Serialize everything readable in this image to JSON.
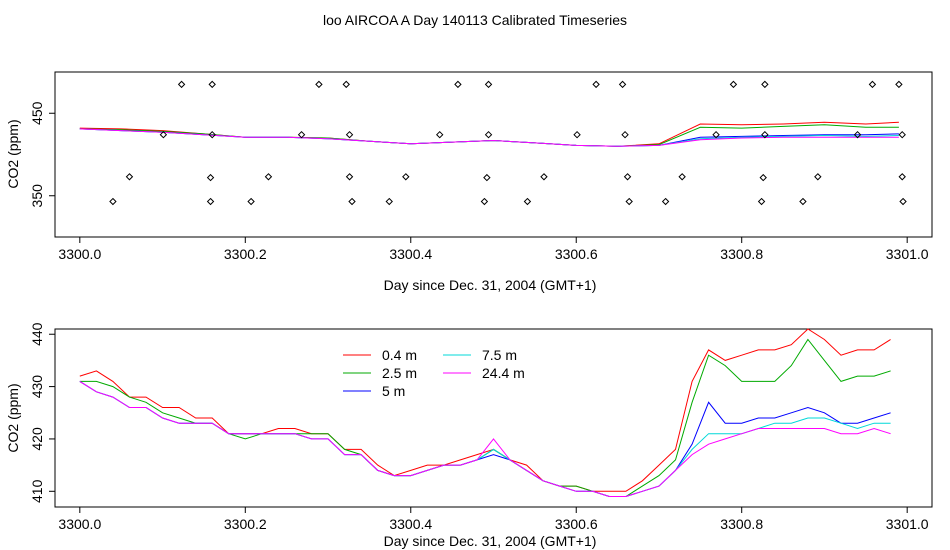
{
  "page_title": "loo AIRCOA A  Day 140113  Calibrated Timeseries",
  "chart_data": [
    {
      "type": "scatter",
      "panel": "top",
      "xlabel": "Day since Dec. 31, 2004 (GMT+1)",
      "ylabel": "CO2 (ppm)",
      "xlim": [
        3299.97,
        3301.03
      ],
      "ylim": [
        300,
        500
      ],
      "x_ticks": [
        "3300.0",
        "3300.2",
        "3300.4",
        "3300.6",
        "3300.8",
        "3301.0"
      ],
      "x_tick_values": [
        3300.0,
        3300.2,
        3300.4,
        3300.6,
        3300.8,
        3301.0
      ],
      "y_ticks": [
        "350",
        "450"
      ],
      "y_tick_values": [
        350,
        450
      ],
      "grid": false,
      "calibration_points": [
        {
          "x": 3300.123,
          "y": 485
        },
        {
          "x": 3300.16,
          "y": 485
        },
        {
          "x": 3300.289,
          "y": 485
        },
        {
          "x": 3300.322,
          "y": 485
        },
        {
          "x": 3300.457,
          "y": 485
        },
        {
          "x": 3300.494,
          "y": 485
        },
        {
          "x": 3300.624,
          "y": 485
        },
        {
          "x": 3300.656,
          "y": 485
        },
        {
          "x": 3300.79,
          "y": 485
        },
        {
          "x": 3300.828,
          "y": 485
        },
        {
          "x": 3300.958,
          "y": 485
        },
        {
          "x": 3300.99,
          "y": 485
        },
        {
          "x": 3300.101,
          "y": 424
        },
        {
          "x": 3300.16,
          "y": 424
        },
        {
          "x": 3300.268,
          "y": 424
        },
        {
          "x": 3300.326,
          "y": 424
        },
        {
          "x": 3300.435,
          "y": 424
        },
        {
          "x": 3300.494,
          "y": 424
        },
        {
          "x": 3300.601,
          "y": 424
        },
        {
          "x": 3300.659,
          "y": 424
        },
        {
          "x": 3300.769,
          "y": 424
        },
        {
          "x": 3300.828,
          "y": 424
        },
        {
          "x": 3300.94,
          "y": 424
        },
        {
          "x": 3300.994,
          "y": 424
        },
        {
          "x": 3300.06,
          "y": 373
        },
        {
          "x": 3300.158,
          "y": 372
        },
        {
          "x": 3300.228,
          "y": 373
        },
        {
          "x": 3300.326,
          "y": 373
        },
        {
          "x": 3300.394,
          "y": 373
        },
        {
          "x": 3300.492,
          "y": 372
        },
        {
          "x": 3300.561,
          "y": 373
        },
        {
          "x": 3300.662,
          "y": 373
        },
        {
          "x": 3300.728,
          "y": 373
        },
        {
          "x": 3300.826,
          "y": 372
        },
        {
          "x": 3300.892,
          "y": 373
        },
        {
          "x": 3300.994,
          "y": 373
        },
        {
          "x": 3300.04,
          "y": 343
        },
        {
          "x": 3300.158,
          "y": 343
        },
        {
          "x": 3300.207,
          "y": 343
        },
        {
          "x": 3300.329,
          "y": 343
        },
        {
          "x": 3300.374,
          "y": 343
        },
        {
          "x": 3300.489,
          "y": 343
        },
        {
          "x": 3300.541,
          "y": 343
        },
        {
          "x": 3300.664,
          "y": 343
        },
        {
          "x": 3300.708,
          "y": 343
        },
        {
          "x": 3300.824,
          "y": 343
        },
        {
          "x": 3300.874,
          "y": 343
        },
        {
          "x": 3300.995,
          "y": 343
        }
      ],
      "line_x": [
        3300.0,
        3300.05,
        3300.1,
        3300.15,
        3300.2,
        3300.25,
        3300.3,
        3300.35,
        3300.4,
        3300.45,
        3300.5,
        3300.55,
        3300.6,
        3300.65,
        3300.7,
        3300.75,
        3300.8,
        3300.85,
        3300.9,
        3300.95,
        3300.99
      ],
      "series": [
        {
          "color": "#ff0000",
          "values": [
            432,
            431,
            429,
            425,
            421,
            421,
            420,
            416,
            413,
            415,
            417,
            414,
            411,
            410,
            413,
            437,
            436,
            437,
            439,
            437,
            439
          ]
        },
        {
          "color": "#00aa00",
          "values": [
            431,
            430,
            428,
            425,
            421,
            421,
            420,
            416,
            413,
            415,
            417,
            414,
            411,
            410,
            412,
            433,
            432,
            434,
            436,
            433,
            433
          ]
        },
        {
          "color": "#0000ff",
          "values": [
            431,
            429,
            427,
            424,
            421,
            421,
            419,
            416,
            413,
            415,
            417,
            414,
            411,
            410,
            411,
            421,
            422,
            423,
            424,
            424,
            425
          ]
        },
        {
          "color": "#00d8d8",
          "values": [
            431,
            429,
            427,
            424,
            421,
            421,
            419,
            416,
            413,
            415,
            417,
            414,
            411,
            410,
            411,
            419,
            421,
            422,
            423,
            422,
            423
          ]
        },
        {
          "color": "#ff00ff",
          "values": [
            431,
            429,
            427,
            424,
            421,
            421,
            419,
            416,
            413,
            415,
            417,
            414,
            411,
            410,
            411,
            418,
            420,
            421,
            421,
            421,
            421
          ]
        }
      ]
    },
    {
      "type": "line",
      "panel": "bottom",
      "xlabel": "Day since Dec. 31, 2004 (GMT+1)",
      "ylabel": "CO2 (ppm)",
      "xlim": [
        3299.97,
        3301.03
      ],
      "ylim": [
        407,
        441
      ],
      "x_ticks": [
        "3300.0",
        "3300.2",
        "3300.4",
        "3300.6",
        "3300.8",
        "3301.0"
      ],
      "x_tick_values": [
        3300.0,
        3300.2,
        3300.4,
        3300.6,
        3300.8,
        3301.0
      ],
      "y_ticks": [
        "410",
        "420",
        "430",
        "440"
      ],
      "y_tick_values": [
        410,
        420,
        430,
        440
      ],
      "grid": false,
      "legend_placement": "top-center",
      "x": [
        3300.0,
        3300.02,
        3300.04,
        3300.06,
        3300.08,
        3300.1,
        3300.12,
        3300.14,
        3300.16,
        3300.18,
        3300.2,
        3300.22,
        3300.24,
        3300.26,
        3300.28,
        3300.3,
        3300.32,
        3300.34,
        3300.36,
        3300.38,
        3300.4,
        3300.42,
        3300.44,
        3300.46,
        3300.48,
        3300.5,
        3300.52,
        3300.54,
        3300.56,
        3300.58,
        3300.6,
        3300.62,
        3300.64,
        3300.66,
        3300.68,
        3300.7,
        3300.72,
        3300.74,
        3300.76,
        3300.78,
        3300.8,
        3300.82,
        3300.84,
        3300.86,
        3300.88,
        3300.9,
        3300.92,
        3300.94,
        3300.96,
        3300.98
      ],
      "series": [
        {
          "name": "0.4 m",
          "color": "#ff0000",
          "values": [
            432,
            433,
            431,
            428,
            428,
            426,
            426,
            424,
            424,
            421,
            421,
            421,
            422,
            422,
            421,
            421,
            418,
            418,
            415,
            413,
            414,
            415,
            415,
            416,
            417,
            418,
            416,
            415,
            412,
            411,
            411,
            410,
            410,
            410,
            412,
            415,
            418,
            431,
            437,
            435,
            436,
            437,
            437,
            438,
            441,
            439,
            436,
            437,
            437,
            439
          ]
        },
        {
          "name": "2.5 m",
          "color": "#00aa00",
          "values": [
            431,
            431,
            430,
            428,
            427,
            425,
            424,
            423,
            423,
            421,
            420,
            421,
            421,
            421,
            421,
            421,
            418,
            417,
            414,
            413,
            413,
            414,
            415,
            415,
            416,
            418,
            416,
            414,
            412,
            411,
            411,
            410,
            409,
            409,
            411,
            413,
            416,
            427,
            436,
            434,
            431,
            431,
            431,
            434,
            439,
            435,
            431,
            432,
            432,
            433
          ]
        },
        {
          "name": "5 m",
          "color": "#0000ff",
          "values": [
            431,
            429,
            428,
            426,
            426,
            424,
            423,
            423,
            423,
            421,
            421,
            421,
            421,
            421,
            420,
            420,
            417,
            417,
            414,
            413,
            413,
            414,
            415,
            415,
            416,
            417,
            416,
            414,
            412,
            411,
            410,
            410,
            409,
            409,
            410,
            411,
            414,
            419,
            427,
            423,
            423,
            424,
            424,
            425,
            426,
            425,
            423,
            423,
            424,
            425
          ]
        },
        {
          "name": "7.5 m",
          "color": "#00d8d8",
          "values": [
            431,
            429,
            428,
            426,
            426,
            424,
            423,
            423,
            423,
            421,
            421,
            421,
            421,
            421,
            420,
            420,
            417,
            417,
            414,
            413,
            413,
            414,
            415,
            415,
            416,
            418,
            416,
            414,
            412,
            411,
            410,
            410,
            409,
            409,
            410,
            411,
            414,
            418,
            421,
            421,
            421,
            422,
            423,
            423,
            424,
            424,
            423,
            422,
            423,
            423
          ]
        },
        {
          "name": "24.4 m",
          "color": "#ff00ff",
          "values": [
            431,
            429,
            428,
            426,
            426,
            424,
            423,
            423,
            423,
            421,
            421,
            421,
            421,
            421,
            420,
            420,
            417,
            417,
            414,
            413,
            413,
            414,
            415,
            415,
            416,
            420,
            416,
            414,
            412,
            411,
            410,
            410,
            409,
            409,
            410,
            411,
            414,
            417,
            419,
            420,
            421,
            422,
            422,
            422,
            422,
            422,
            421,
            421,
            422,
            421
          ]
        }
      ]
    }
  ]
}
